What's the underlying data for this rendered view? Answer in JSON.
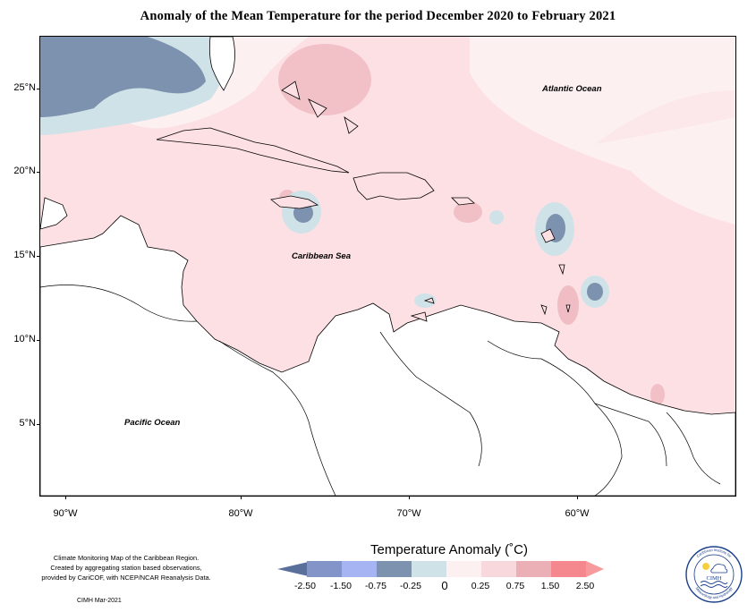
{
  "title": "Anomaly of the Mean Temperature for the period December 2020 to February 2021",
  "map": {
    "latitude_labels": [
      "25°N",
      "20°N",
      "15°N",
      "10°N",
      "5°N"
    ],
    "longitude_labels": [
      "90°W",
      "80°W",
      "70°W",
      "60°W"
    ],
    "ocean_labels": {
      "atlantic": "Atlantic Ocean",
      "caribbean": "Caribbean Sea",
      "pacific": "Pacific Ocean"
    },
    "colors": {
      "land": "#ffffff",
      "border": "#000000"
    }
  },
  "legend": {
    "title": "Temperature Anomaly (˚C)",
    "labels": [
      "-2.50",
      "-1.50",
      "-0.75",
      "-0.25",
      "0",
      "0.25",
      "0.75",
      "1.50",
      "2.50"
    ],
    "colors": [
      "#5b6f9b",
      "#8294c8",
      "#a6b4f4",
      "#7d92ae",
      "#cfe2e8",
      "#fdf0f0",
      "#f9d8dd",
      "#ebb0b6",
      "#f5888e",
      "#f79a9e"
    ]
  },
  "credit": {
    "line1": "Climate Monitoring Map of the Caribbean Region.",
    "line2": "Created by aggregating station based observations,",
    "line3": "provided by CariCOF, with NCEP/NCAR Reanalysis Data.",
    "stamp": "CIMH Mar-2021"
  },
  "logo": {
    "name": "CIMH",
    "ring_top": "Caribbean Institute for",
    "ring_bottom": "Meteorology and Hydrology"
  }
}
